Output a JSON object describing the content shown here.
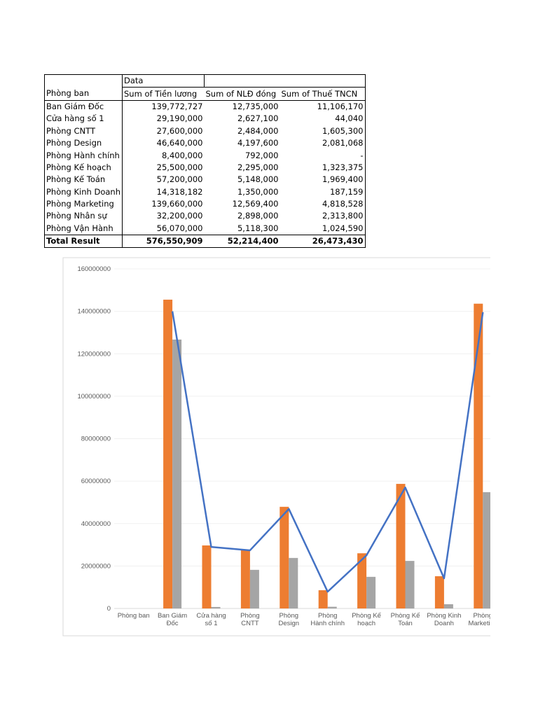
{
  "table": {
    "corner_label": "Data",
    "headers": [
      "Phòng ban",
      "Sum of Tiền lương",
      "Sum of NLĐ đóng",
      "Sum of Thuế TNCN"
    ],
    "rows": [
      [
        "Ban Giám Đốc",
        "139,772,727",
        "12,735,000",
        "11,106,170"
      ],
      [
        "Cửa hàng số 1",
        "29,190,000",
        "2,627,100",
        "44,040"
      ],
      [
        "Phòng CNTT",
        "27,600,000",
        "2,484,000",
        "1,605,300"
      ],
      [
        "Phòng Design",
        "46,640,000",
        "4,197,600",
        "2,081,068"
      ],
      [
        "Phòng Hành chính",
        "8,400,000",
        "792,000",
        "-"
      ],
      [
        "Phòng Kế hoạch",
        "25,500,000",
        "2,295,000",
        "1,323,375"
      ],
      [
        "Phòng Kế Toán",
        "57,200,000",
        "5,148,000",
        "1,969,400"
      ],
      [
        "Phòng Kinh Doanh",
        "14,318,182",
        "1,350,000",
        "187,159"
      ],
      [
        "Phòng Marketing",
        "139,660,000",
        "12,569,400",
        "4,818,528"
      ],
      [
        "Phòng Nhân sự",
        "32,200,000",
        "2,898,000",
        "2,313,800"
      ],
      [
        "Phòng Vận Hành",
        "56,070,000",
        "5,118,300",
        "1,024,590"
      ]
    ],
    "total": [
      "Total Result",
      "576,550,909",
      "52,214,400",
      "26,473,430"
    ]
  },
  "chart_data": {
    "type": "bar",
    "categories": [
      "Phòng ban",
      "Ban Giám Đốc",
      "Cửa hàng số 1",
      "Phòng CNTT",
      "Phòng Design",
      "Phòng Hành chính",
      "Phòng Kế hoạch",
      "Phòng Kế Toán",
      "Phòng Kinh Doanh",
      "Phòng Marketing"
    ],
    "series": [
      {
        "color": "#ed7d31",
        "values": [
          null,
          145500000,
          29700000,
          27700000,
          47900000,
          8600000,
          26000000,
          58700000,
          15200000,
          143600000
        ]
      },
      {
        "color": "#a5a5a5",
        "values": [
          null,
          126700000,
          700000,
          18200000,
          23800000,
          800000,
          14900000,
          22400000,
          2000000,
          54800000
        ]
      },
      {
        "type": "line",
        "color": "#4472c4",
        "values": [
          null,
          140000000,
          29000000,
          27400000,
          46900000,
          7900000,
          25000000,
          57000000,
          14200000,
          139600000
        ]
      }
    ],
    "ylim": [
      0,
      160000000
    ],
    "yticks": [
      0,
      20000000,
      40000000,
      60000000,
      80000000,
      100000000,
      120000000,
      140000000,
      160000000
    ],
    "grid": true
  }
}
